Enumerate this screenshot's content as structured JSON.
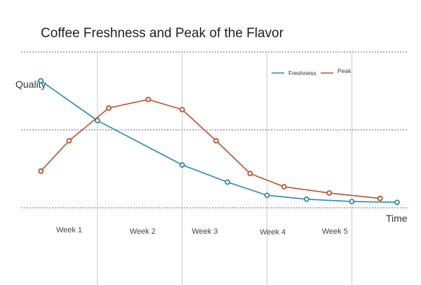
{
  "chart_data": {
    "type": "line",
    "title": "Coffee Freshness and Peak of the Flavor",
    "xlabel": "Time",
    "ylabel": "Quality",
    "x_ticks": [
      "Week 1",
      "Week 2",
      "Week 3",
      "Week 4",
      "Week 5"
    ],
    "xlim": [
      0.15,
      6.95
    ],
    "ylim": [
      0,
      2
    ],
    "grid": {
      "horizontal": true,
      "horizontal_style": "dotted",
      "vertical": true
    },
    "legend": "top-right",
    "series": [
      {
        "name": "Freshness",
        "color": "#2b8aa8",
        "points": [
          [
            0.5,
            1.63
          ],
          [
            1.5,
            1.12
          ],
          [
            3.0,
            0.55
          ],
          [
            3.8,
            0.33
          ],
          [
            4.5,
            0.16
          ],
          [
            5.2,
            0.11
          ],
          [
            6.0,
            0.08
          ],
          [
            6.8,
            0.07
          ]
        ]
      },
      {
        "name": "Peak",
        "color": "#b8532a",
        "points": [
          [
            0.5,
            0.47
          ],
          [
            1.0,
            0.86
          ],
          [
            1.7,
            1.28
          ],
          [
            2.4,
            1.39
          ],
          [
            3.0,
            1.26
          ],
          [
            3.6,
            0.86
          ],
          [
            4.2,
            0.44
          ],
          [
            4.8,
            0.27
          ],
          [
            5.6,
            0.19
          ],
          [
            6.5,
            0.12
          ]
        ]
      }
    ]
  }
}
